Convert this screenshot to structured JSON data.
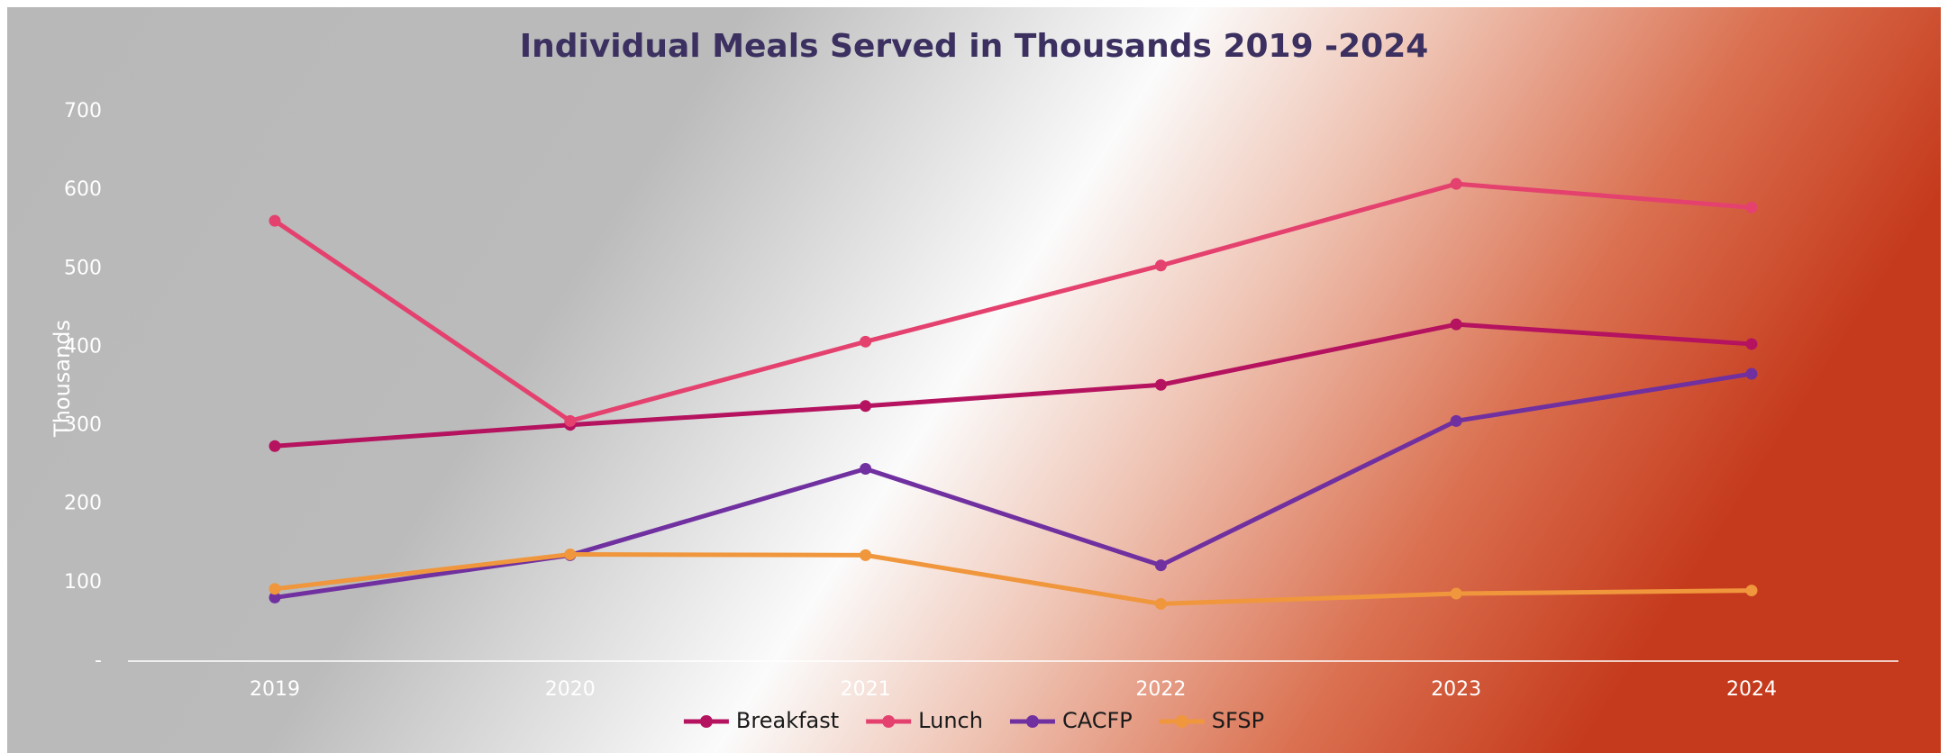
{
  "chart_data": {
    "type": "line",
    "title": "Individual Meals Served in Thousands 2019 -2024",
    "y_label": "Thousands",
    "categories": [
      "2019",
      "2020",
      "2021",
      "2022",
      "2023",
      "2024"
    ],
    "series": [
      {
        "name": "Breakfast",
        "color": "#b5135f",
        "values": [
          274,
          301,
          325,
          352,
          429,
          404
        ]
      },
      {
        "name": "Lunch",
        "color": "#e4416f",
        "values": [
          561,
          306,
          407,
          504,
          608,
          578
        ]
      },
      {
        "name": "CACFP",
        "color": "#7030a0",
        "values": [
          81,
          135,
          245,
          122,
          306,
          366
        ]
      },
      {
        "name": "SFSP",
        "color": "#f0963c",
        "values": [
          92,
          136,
          135,
          73,
          86,
          90
        ]
      }
    ],
    "ylim": [
      0,
      700
    ],
    "yticks": [
      {
        "value": 0,
        "label": "-"
      },
      100,
      200,
      300,
      400,
      500,
      600,
      700
    ],
    "legend": "bottom"
  }
}
